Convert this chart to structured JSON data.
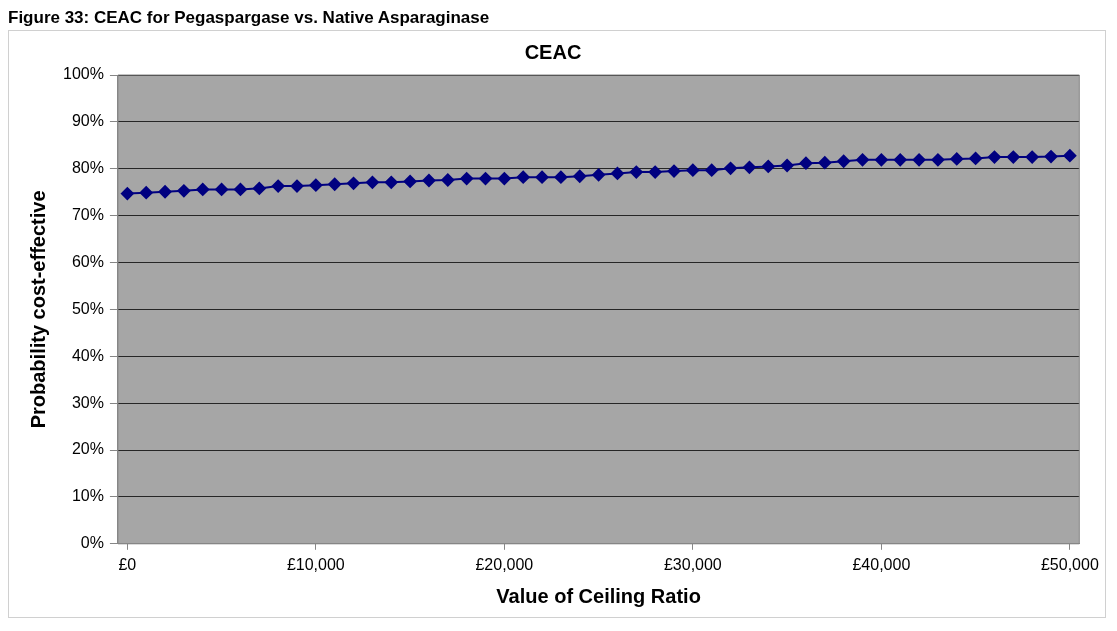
{
  "chart_data": {
    "type": "line",
    "title": "CEAC",
    "xlabel": "Value of Ceiling Ratio",
    "ylabel": "Probability cost-effective",
    "annotations": [
      "Figure 33: CEAC for Pegaspargase vs. Native Asparaginase"
    ],
    "x": [
      0,
      1000,
      2000,
      3000,
      4000,
      5000,
      6000,
      7000,
      8000,
      9000,
      10000,
      11000,
      12000,
      13000,
      14000,
      15000,
      16000,
      17000,
      18000,
      19000,
      20000,
      21000,
      22000,
      23000,
      24000,
      25000,
      26000,
      27000,
      28000,
      29000,
      30000,
      31000,
      32000,
      33000,
      34000,
      35000,
      36000,
      37000,
      38000,
      39000,
      40000,
      41000,
      42000,
      43000,
      44000,
      45000,
      46000,
      47000,
      48000,
      49000,
      50000
    ],
    "series": [
      {
        "color": "#000080",
        "values": [
          74.7,
          74.9,
          75.1,
          75.3,
          75.6,
          75.6,
          75.6,
          75.8,
          76.3,
          76.3,
          76.5,
          76.7,
          76.9,
          77.1,
          77.1,
          77.3,
          77.5,
          77.6,
          77.9,
          77.9,
          77.9,
          78.2,
          78.2,
          78.2,
          78.4,
          78.7,
          79.0,
          79.3,
          79.3,
          79.5,
          79.7,
          79.7,
          80.1,
          80.3,
          80.5,
          80.7,
          81.2,
          81.3,
          81.6,
          81.9,
          81.9,
          81.9,
          81.9,
          81.9,
          82.1,
          82.2,
          82.5,
          82.5,
          82.5,
          82.6,
          82.8
        ]
      }
    ],
    "xlim": [
      -500,
      50500
    ],
    "xticks": [
      {
        "value": 0,
        "label": "£0"
      },
      {
        "value": 10000,
        "label": "£10,000"
      },
      {
        "value": 20000,
        "label": "£20,000"
      },
      {
        "value": 30000,
        "label": "£30,000"
      },
      {
        "value": 40000,
        "label": "£40,000"
      },
      {
        "value": 50000,
        "label": "£50,000"
      }
    ],
    "ylim": [
      0,
      100
    ],
    "yticks": [
      {
        "value": 0,
        "label": "0%"
      },
      {
        "value": 10,
        "label": "10%"
      },
      {
        "value": 20,
        "label": "20%"
      },
      {
        "value": 30,
        "label": "30%"
      },
      {
        "value": 40,
        "label": "40%"
      },
      {
        "value": 50,
        "label": "50%"
      },
      {
        "value": 60,
        "label": "60%"
      },
      {
        "value": 70,
        "label": "70%"
      },
      {
        "value": 80,
        "label": "80%"
      },
      {
        "value": 90,
        "label": "90%"
      },
      {
        "value": 100,
        "label": "100%"
      }
    ],
    "grid": "y",
    "marker": "diamond",
    "line_style": "solid"
  }
}
